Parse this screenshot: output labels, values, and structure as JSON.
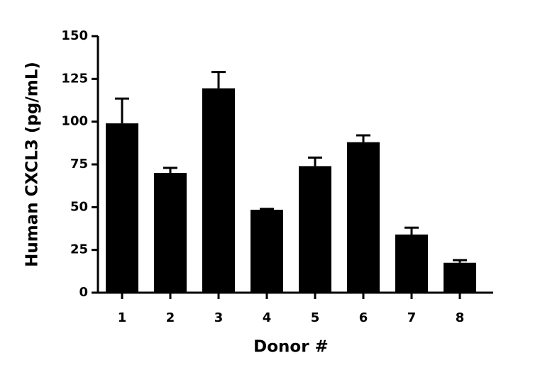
{
  "chart_data": {
    "type": "bar",
    "x_label": "Donor #",
    "y_label": "Human CXCL3 (pg/mL)",
    "categories": [
      "1",
      "2",
      "3",
      "4",
      "5",
      "6",
      "7",
      "8"
    ],
    "values": [
      99,
      70,
      119.5,
      48.5,
      74,
      88,
      34,
      17.5
    ],
    "errors": [
      14.5,
      3,
      9.5,
      0.5,
      5,
      4,
      4,
      1.5
    ],
    "color": "#000000",
    "ylim": [
      0,
      150
    ],
    "yticks": [
      0,
      25,
      50,
      75,
      100,
      125,
      150
    ],
    "grid": false
  }
}
